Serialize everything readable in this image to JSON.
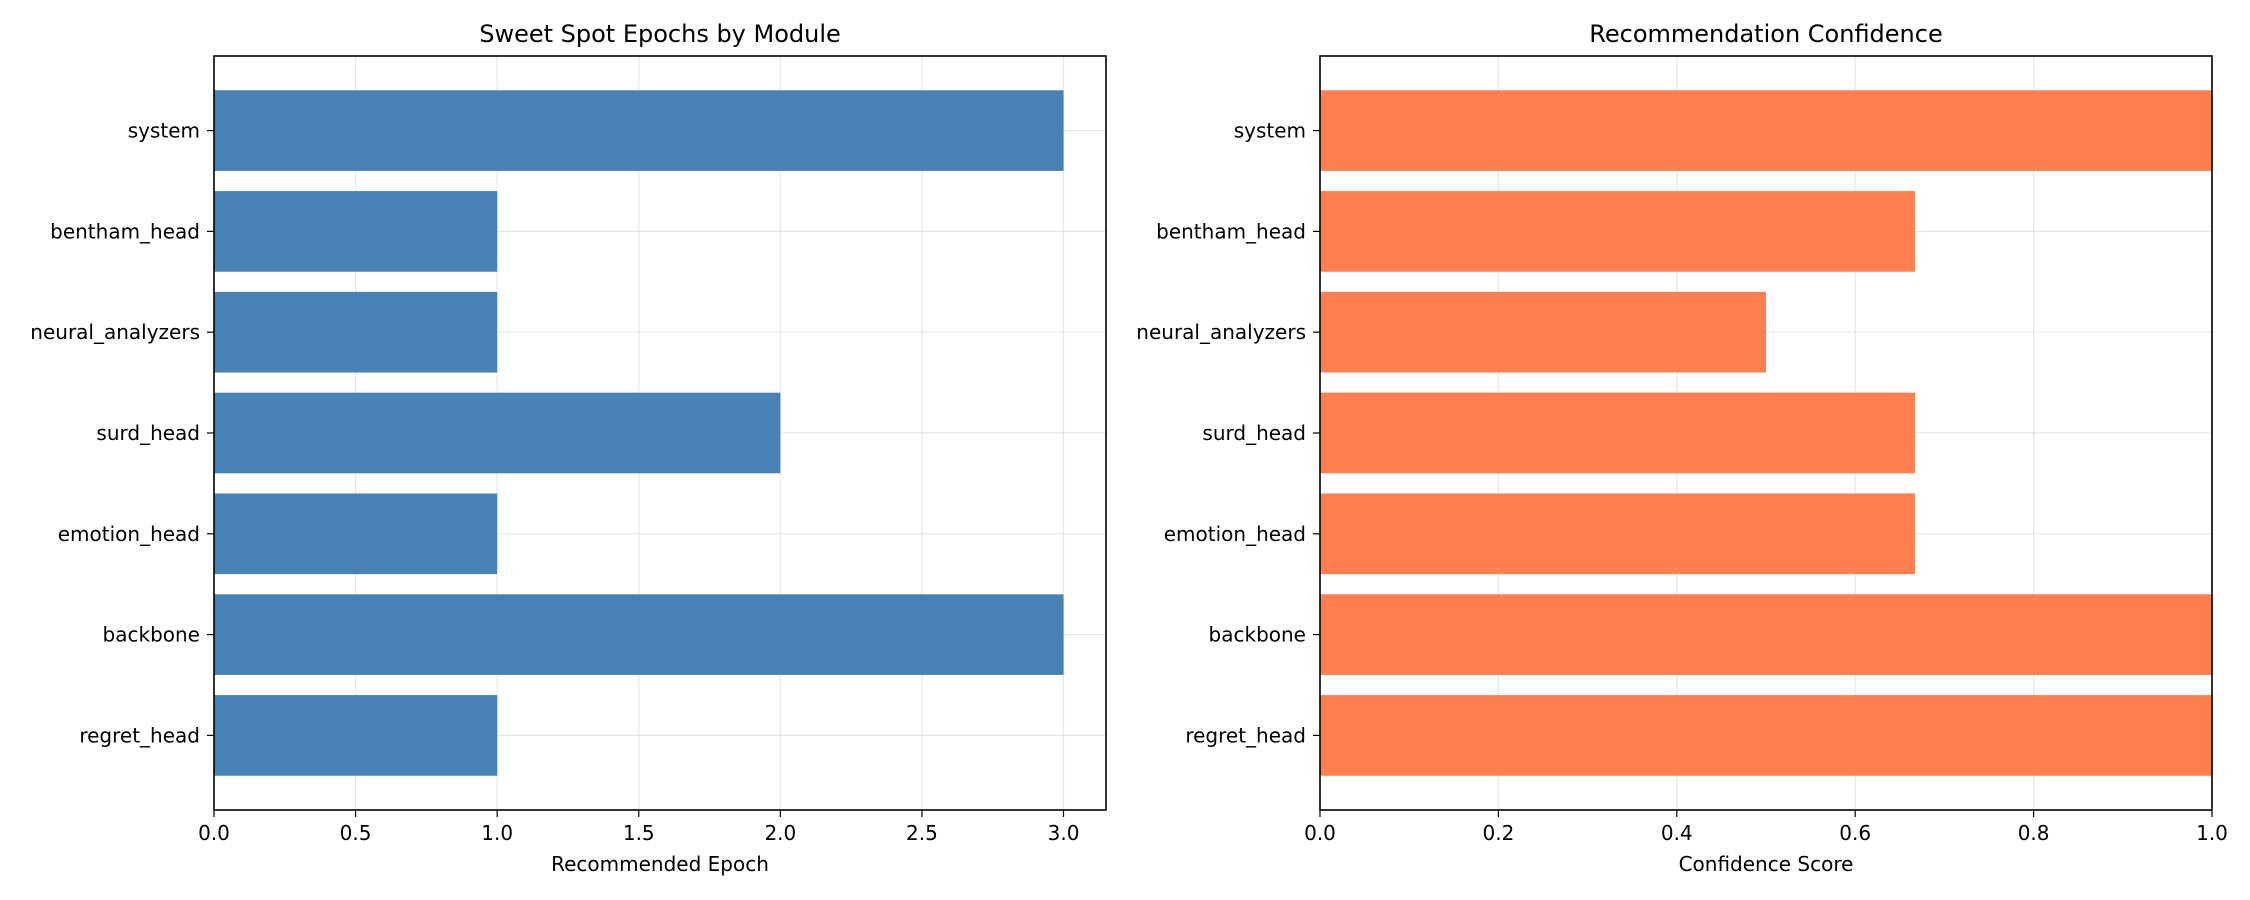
{
  "chart_data": [
    {
      "type": "bar",
      "orientation": "horizontal",
      "title": "Sweet Spot Epochs by Module",
      "xlabel": "Recommended Epoch",
      "ylabel": "",
      "categories": [
        "system",
        "bentham_head",
        "neural_analyzers",
        "surd_head",
        "emotion_head",
        "backbone",
        "regret_head"
      ],
      "values": [
        3,
        1,
        1,
        2,
        1,
        3,
        1
      ],
      "xlim": [
        0,
        3.15
      ],
      "xticks": [
        "0.0",
        "0.5",
        "1.0",
        "1.5",
        "2.0",
        "2.5",
        "3.0"
      ],
      "color": "#4682b4",
      "grid": true
    },
    {
      "type": "bar",
      "orientation": "horizontal",
      "title": "Recommendation Confidence",
      "xlabel": "Confidence Score",
      "ylabel": "",
      "categories": [
        "system",
        "bentham_head",
        "neural_analyzers",
        "surd_head",
        "emotion_head",
        "backbone",
        "regret_head"
      ],
      "values": [
        1.0,
        0.667,
        0.5,
        0.667,
        0.667,
        1.0,
        1.0
      ],
      "xlim": [
        0,
        1.0
      ],
      "xticks": [
        "0.0",
        "0.2",
        "0.4",
        "0.6",
        "0.8",
        "1.0"
      ],
      "color": "#ff7f50",
      "grid": true
    }
  ]
}
